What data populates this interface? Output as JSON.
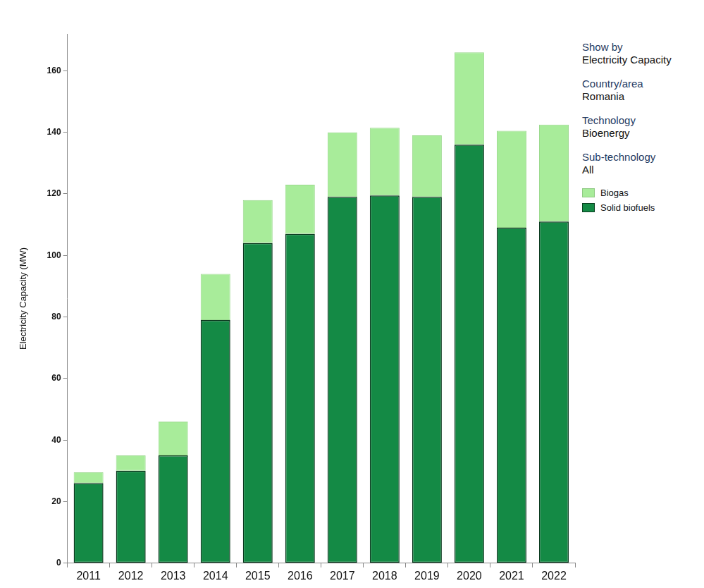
{
  "chart_data": {
    "type": "bar",
    "y_label": "Electricity Capacity (MW)",
    "categories": [
      "2011",
      "2012",
      "2013",
      "2014",
      "2015",
      "2016",
      "2017",
      "2018",
      "2019",
      "2020",
      "2021",
      "2022"
    ],
    "series": [
      {
        "name": "Solid biofuels",
        "color": "#148a45",
        "values": [
          26,
          30,
          35,
          79,
          104,
          107,
          119,
          119.5,
          119,
          136,
          109,
          111
        ]
      },
      {
        "name": "Biogas",
        "color": "#a8ec9a",
        "values": [
          3.5,
          5,
          11,
          15,
          14,
          16,
          21,
          22,
          20,
          30,
          31.5,
          31.5
        ]
      }
    ],
    "stacked": true,
    "ylim": [
      0,
      172
    ],
    "yticks": [
      0,
      20,
      40,
      60,
      80,
      100,
      120,
      140,
      160
    ],
    "grid": false,
    "legend": "right",
    "filters": [
      {
        "label": "Show by",
        "value": "Electricity Capacity"
      },
      {
        "label": "Country/area",
        "value": "Romania"
      },
      {
        "label": "Technology",
        "value": "Bioenergy"
      },
      {
        "label": "Sub-technology",
        "value": "All"
      }
    ]
  }
}
